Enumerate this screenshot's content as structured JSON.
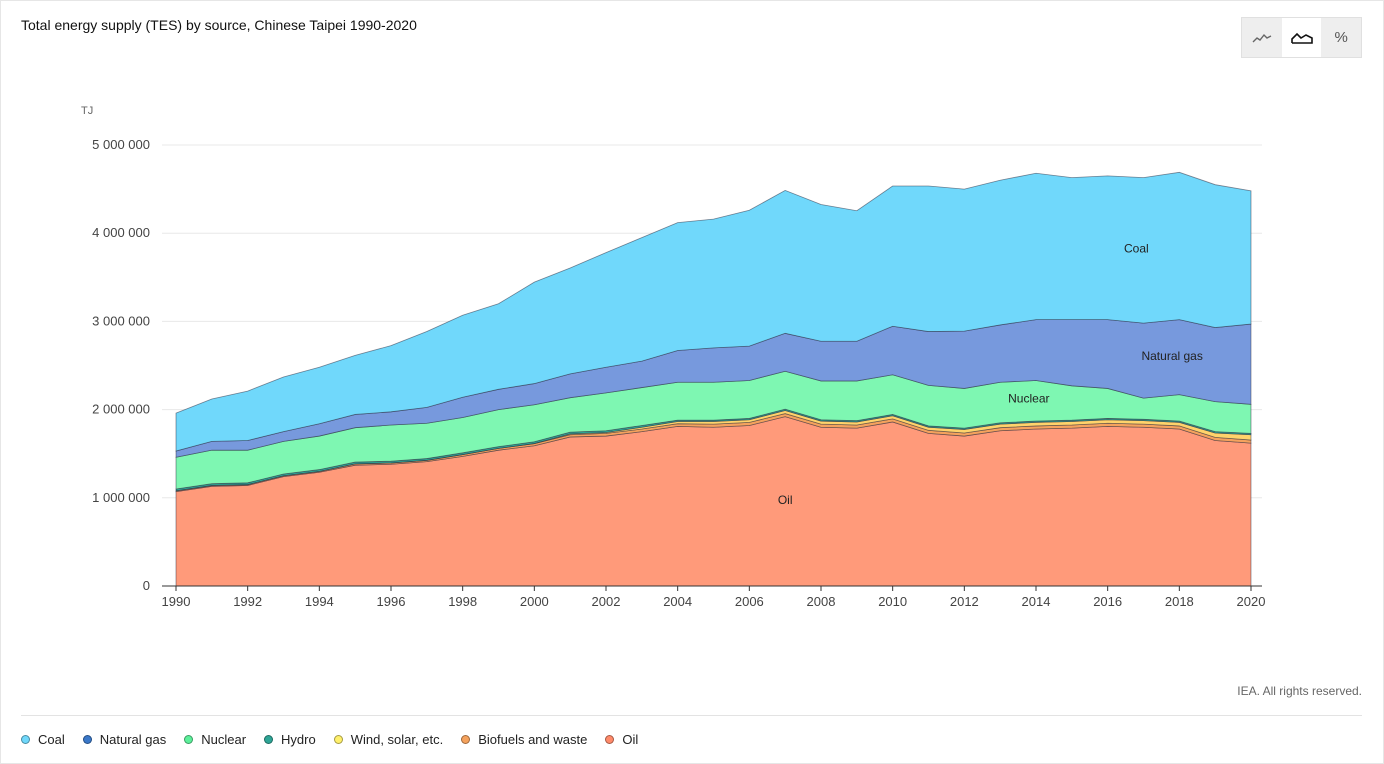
{
  "title": "Total energy supply (TES) by source, Chinese Taipei 1990-2020",
  "credit": "IEA. All rights reserved.",
  "view_toggle": [
    {
      "name": "line-view-icon",
      "active": false
    },
    {
      "name": "area-view-icon",
      "active": true
    },
    {
      "name": "percent-view-icon",
      "label": "%",
      "active": false
    }
  ],
  "chart_data": {
    "type": "area",
    "stacked": true,
    "title": "Total energy supply (TES) by source, Chinese Taipei 1990-2020",
    "ylabel": "TJ",
    "xlabel": "",
    "ylim": [
      0,
      5000000
    ],
    "y_ticks": [
      0,
      1000000,
      2000000,
      3000000,
      4000000,
      5000000
    ],
    "y_tick_labels": [
      "0",
      "1 000 000",
      "2 000 000",
      "3 000 000",
      "4 000 000",
      "5 000 000"
    ],
    "x_ticks": [
      1990,
      1992,
      1994,
      1996,
      1998,
      2000,
      2002,
      2004,
      2006,
      2008,
      2010,
      2012,
      2014,
      2016,
      2018,
      2020
    ],
    "grid": true,
    "x": [
      1990,
      1991,
      1992,
      1993,
      1994,
      1995,
      1996,
      1997,
      1998,
      1999,
      2000,
      2001,
      2002,
      2003,
      2004,
      2005,
      2006,
      2007,
      2008,
      2009,
      2010,
      2011,
      2012,
      2013,
      2014,
      2015,
      2016,
      2017,
      2018,
      2019,
      2020
    ],
    "series": [
      {
        "name": "Oil",
        "color": "#ff9a7a",
        "values": [
          1070000,
          1130000,
          1140000,
          1240000,
          1290000,
          1370000,
          1380000,
          1410000,
          1470000,
          1540000,
          1590000,
          1690000,
          1700000,
          1750000,
          1810000,
          1800000,
          1820000,
          1920000,
          1800000,
          1790000,
          1860000,
          1730000,
          1700000,
          1760000,
          1780000,
          1790000,
          1810000,
          1800000,
          1780000,
          1650000,
          1620000
        ]
      },
      {
        "name": "Biofuels and waste",
        "color": "#f5a25d",
        "values": [
          10000,
          10000,
          10000,
          10000,
          10000,
          15000,
          15000,
          15000,
          20000,
          20000,
          25000,
          25000,
          30000,
          30000,
          30000,
          35000,
          35000,
          35000,
          35000,
          35000,
          35000,
          35000,
          35000,
          35000,
          35000,
          35000,
          35000,
          35000,
          35000,
          35000,
          35000
        ]
      },
      {
        "name": "Wind, solar, etc.",
        "color": "#ffd36b",
        "values": [
          0,
          0,
          0,
          0,
          0,
          0,
          0,
          0,
          0,
          0,
          0,
          10000,
          10000,
          20000,
          25000,
          30000,
          30000,
          35000,
          35000,
          35000,
          35000,
          35000,
          40000,
          40000,
          40000,
          40000,
          40000,
          40000,
          40000,
          50000,
          60000
        ]
      },
      {
        "name": "Hydro",
        "color": "#2ea596",
        "values": [
          20000,
          20000,
          20000,
          20000,
          20000,
          20000,
          20000,
          20000,
          20000,
          20000,
          20000,
          20000,
          20000,
          20000,
          15000,
          15000,
          15000,
          15000,
          15000,
          15000,
          15000,
          15000,
          15000,
          15000,
          15000,
          15000,
          15000,
          15000,
          15000,
          15000,
          15000
        ]
      },
      {
        "name": "Nuclear",
        "color": "#7ef7b2",
        "values": [
          360000,
          380000,
          370000,
          370000,
          380000,
          390000,
          410000,
          400000,
          400000,
          420000,
          420000,
          390000,
          430000,
          430000,
          430000,
          430000,
          430000,
          430000,
          440000,
          450000,
          450000,
          460000,
          450000,
          460000,
          460000,
          390000,
          340000,
          240000,
          300000,
          340000,
          330000
        ]
      },
      {
        "name": "Natural gas",
        "color": "#7799dd",
        "values": [
          70000,
          100000,
          110000,
          110000,
          140000,
          150000,
          150000,
          180000,
          230000,
          230000,
          240000,
          270000,
          290000,
          300000,
          360000,
          390000,
          390000,
          430000,
          450000,
          450000,
          550000,
          610000,
          650000,
          650000,
          690000,
          750000,
          780000,
          850000,
          850000,
          840000,
          910000
        ]
      },
      {
        "name": "Coal",
        "color": "#70d8fb",
        "values": [
          430000,
          480000,
          560000,
          620000,
          640000,
          670000,
          750000,
          860000,
          930000,
          970000,
          1150000,
          1200000,
          1300000,
          1400000,
          1450000,
          1460000,
          1540000,
          1620000,
          1550000,
          1480000,
          1590000,
          1650000,
          1610000,
          1640000,
          1660000,
          1610000,
          1630000,
          1650000,
          1670000,
          1620000,
          1510000
        ]
      }
    ],
    "annotations": [
      {
        "text": "Coal",
        "x": 2016.8,
        "y": 3780000
      },
      {
        "text": "Natural gas",
        "x": 2017.8,
        "y": 2560000
      },
      {
        "text": "Nuclear",
        "x": 2013.8,
        "y": 2080000
      },
      {
        "text": "Oil",
        "x": 2007,
        "y": 930000
      }
    ],
    "legend_position": "bottom-left"
  },
  "legend": [
    {
      "label": "Coal",
      "color": "#70d8fb"
    },
    {
      "label": "Natural gas",
      "color": "#3a78c9"
    },
    {
      "label": "Nuclear",
      "color": "#5cf09a"
    },
    {
      "label": "Hydro",
      "color": "#2ea596"
    },
    {
      "label": "Wind, solar, etc.",
      "color": "#fff06b"
    },
    {
      "label": "Biofuels and waste",
      "color": "#f5a25d"
    },
    {
      "label": "Oil",
      "color": "#ff8a6a"
    }
  ]
}
